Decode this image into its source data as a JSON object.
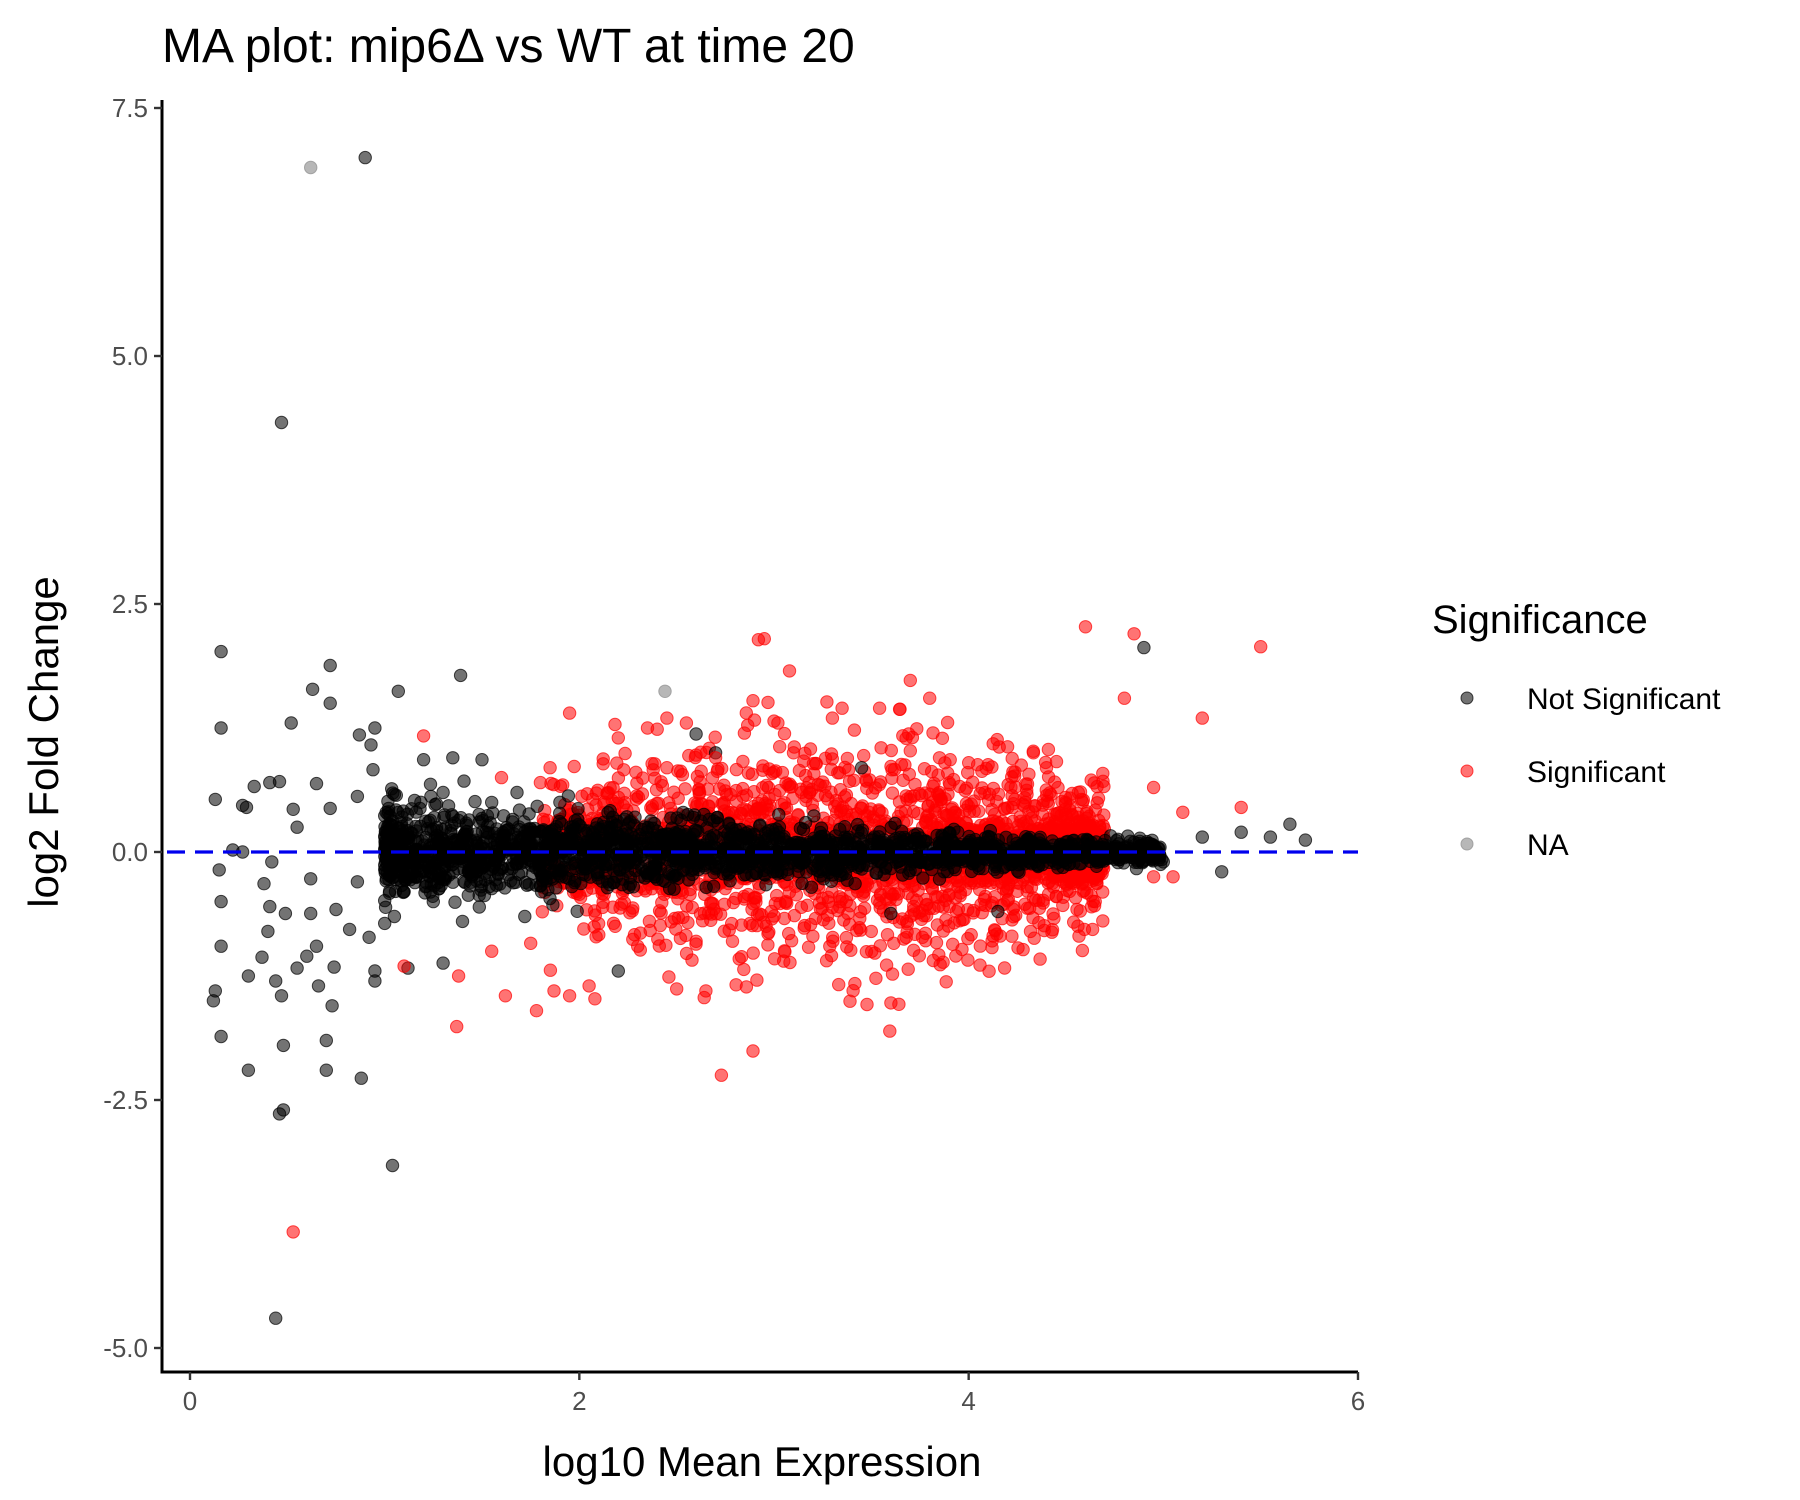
{
  "chart_data": {
    "type": "scatter",
    "title": "MA plot: mip6Δ vs WT at time 20",
    "xlabel": "log10 Mean Expression",
    "ylabel": "log2 Fold Change",
    "xlim": [
      -0.15,
      6.0
    ],
    "ylim": [
      -5.2,
      7.5
    ],
    "xticks": [
      0,
      2,
      4,
      6
    ],
    "yticks": [
      -5.0,
      -2.5,
      0.0,
      2.5,
      5.0,
      7.5
    ],
    "xtick_labels": [
      "0",
      "2",
      "4",
      "6"
    ],
    "ytick_labels": [
      "-5.0",
      "-2.5",
      "0.0",
      "2.5",
      "5.0",
      "7.5"
    ],
    "reference_line": {
      "y": 0,
      "style": "dashed",
      "color": "#0000ee"
    },
    "grid": false,
    "legend": {
      "title": "Significance",
      "position": "right",
      "entries": [
        "Not Significant",
        "Significant",
        "NA"
      ]
    },
    "series": [
      {
        "name": "Not Significant",
        "color": "#000000",
        "opacity": 0.55,
        "points": [
          [
            0.9,
            7.0
          ],
          [
            0.47,
            4.33
          ],
          [
            0.16,
            2.02
          ],
          [
            0.72,
            1.88
          ],
          [
            1.39,
            1.78
          ],
          [
            0.63,
            1.64
          ],
          [
            1.07,
            1.62
          ],
          [
            0.72,
            1.5
          ],
          [
            0.16,
            1.25
          ],
          [
            0.52,
            1.3
          ],
          [
            0.87,
            1.18
          ],
          [
            0.95,
            1.25
          ],
          [
            0.93,
            1.08
          ],
          [
            4.9,
            2.06
          ],
          [
            2.6,
            1.19
          ],
          [
            1.35,
            0.95
          ],
          [
            1.2,
            0.93
          ],
          [
            0.94,
            0.83
          ],
          [
            1.5,
            0.93
          ],
          [
            0.13,
            0.53
          ],
          [
            0.33,
            0.66
          ],
          [
            0.41,
            0.7
          ],
          [
            0.46,
            0.71
          ],
          [
            0.65,
            0.69
          ],
          [
            0.86,
            0.56
          ],
          [
            1.05,
            0.58
          ],
          [
            0.29,
            0.45
          ],
          [
            0.53,
            0.43
          ],
          [
            0.72,
            0.44
          ],
          [
            0.55,
            0.25
          ],
          [
            0.22,
            0.02
          ],
          [
            0.27,
            0.0
          ],
          [
            0.15,
            -0.18
          ],
          [
            0.42,
            -0.1
          ],
          [
            0.38,
            -0.32
          ],
          [
            0.16,
            -0.5
          ],
          [
            0.62,
            -0.27
          ],
          [
            0.86,
            -0.3
          ],
          [
            0.41,
            -0.55
          ],
          [
            0.49,
            -0.62
          ],
          [
            0.62,
            -0.62
          ],
          [
            0.75,
            -0.58
          ],
          [
            0.16,
            -0.95
          ],
          [
            0.4,
            -0.8
          ],
          [
            0.65,
            -0.95
          ],
          [
            0.82,
            -0.78
          ],
          [
            0.92,
            -0.86
          ],
          [
            1.0,
            -0.72
          ],
          [
            1.05,
            -0.65
          ],
          [
            0.3,
            -1.25
          ],
          [
            0.37,
            -1.06
          ],
          [
            0.44,
            -1.3
          ],
          [
            0.55,
            -1.17
          ],
          [
            0.6,
            -1.05
          ],
          [
            0.74,
            -1.16
          ],
          [
            0.95,
            -1.2
          ],
          [
            0.13,
            -1.4
          ],
          [
            0.12,
            -1.5
          ],
          [
            0.47,
            -1.45
          ],
          [
            0.66,
            -1.35
          ],
          [
            0.73,
            -1.55
          ],
          [
            0.95,
            -1.3
          ],
          [
            1.12,
            -1.17
          ],
          [
            1.3,
            -1.12
          ],
          [
            0.16,
            -1.86
          ],
          [
            0.48,
            -1.95
          ],
          [
            0.7,
            -1.9
          ],
          [
            0.3,
            -2.2
          ],
          [
            0.7,
            -2.2
          ],
          [
            0.88,
            -2.28
          ],
          [
            0.48,
            -2.6
          ],
          [
            0.46,
            -2.64
          ],
          [
            1.04,
            -3.16
          ],
          [
            0.44,
            -4.7
          ],
          [
            5.4,
            0.2
          ],
          [
            5.55,
            0.15
          ],
          [
            5.65,
            0.28
          ],
          [
            5.73,
            0.12
          ],
          [
            5.3,
            -0.2
          ],
          [
            5.0,
            -0.1
          ],
          [
            5.2,
            0.15
          ],
          [
            4.95,
            -0.05
          ],
          [
            4.85,
            0.1
          ],
          [
            4.75,
            0.05
          ],
          [
            4.6,
            -0.05
          ],
          [
            4.5,
            0.1
          ],
          [
            4.4,
            0.02
          ],
          [
            4.3,
            0.08
          ],
          [
            4.15,
            -0.6
          ],
          [
            3.6,
            -0.62
          ],
          [
            3.45,
            0.85
          ],
          [
            2.7,
            1.0
          ],
          [
            2.2,
            -1.2
          ],
          [
            1.72,
            -0.65
          ],
          [
            1.68,
            0.6
          ],
          [
            1.55,
            0.5
          ],
          [
            1.3,
            0.6
          ],
          [
            1.4,
            -0.7
          ],
          [
            1.25,
            -0.5
          ],
          [
            1.1,
            -0.4
          ],
          [
            0.27,
            0.47
          ]
        ]
      },
      {
        "name": "Significant",
        "color": "#ff0000",
        "opacity": 0.55,
        "points": [
          [
            2.92,
            2.14
          ],
          [
            2.95,
            2.15
          ],
          [
            4.6,
            2.27
          ],
          [
            4.85,
            2.2
          ],
          [
            5.5,
            2.07
          ],
          [
            3.7,
            1.73
          ],
          [
            3.8,
            1.55
          ],
          [
            4.8,
            1.55
          ],
          [
            5.2,
            1.35
          ],
          [
            1.95,
            1.4
          ],
          [
            1.2,
            1.17
          ],
          [
            2.45,
            1.35
          ],
          [
            2.55,
            1.3
          ],
          [
            2.9,
            1.33
          ],
          [
            3.0,
            1.32
          ],
          [
            3.02,
            1.3
          ],
          [
            3.35,
            1.45
          ],
          [
            3.3,
            1.35
          ],
          [
            2.35,
            1.25
          ],
          [
            2.2,
            1.15
          ],
          [
            4.2,
            1.06
          ],
          [
            4.1,
            0.88
          ],
          [
            4.4,
            0.85
          ],
          [
            5.4,
            0.45
          ],
          [
            5.1,
            0.4
          ],
          [
            4.95,
            0.65
          ],
          [
            0.53,
            -3.83
          ],
          [
            2.73,
            -2.25
          ],
          [
            1.37,
            -1.76
          ],
          [
            1.62,
            -1.45
          ],
          [
            1.78,
            -1.6
          ],
          [
            1.87,
            -1.4
          ],
          [
            1.95,
            -1.45
          ],
          [
            2.05,
            -1.35
          ],
          [
            2.08,
            -1.48
          ],
          [
            2.5,
            -1.38
          ],
          [
            2.65,
            -1.4
          ],
          [
            3.05,
            -1.1
          ],
          [
            1.1,
            -1.15
          ],
          [
            1.38,
            -1.25
          ],
          [
            1.55,
            -1.0
          ],
          [
            1.75,
            -0.92
          ],
          [
            2.3,
            -0.95
          ],
          [
            2.6,
            -0.9
          ],
          [
            3.2,
            -0.85
          ],
          [
            3.5,
            -0.8
          ],
          [
            4.65,
            -0.5
          ],
          [
            4.95,
            -0.25
          ],
          [
            5.05,
            -0.25
          ],
          [
            3.9,
            -0.55
          ],
          [
            4.3,
            -0.35
          ],
          [
            4.45,
            -0.45
          ],
          [
            1.6,
            0.75
          ],
          [
            1.85,
            0.85
          ],
          [
            1.8,
            0.7
          ],
          [
            3.7,
            1.02
          ],
          [
            3.55,
            1.05
          ],
          [
            3.1,
            1.0
          ],
          [
            3.85,
            0.95
          ],
          [
            4.0,
            0.9
          ],
          [
            2.45,
            0.85
          ],
          [
            2.7,
            0.95
          ]
        ]
      },
      {
        "name": "NA",
        "color": "#999999",
        "opacity": 0.7,
        "points": [
          [
            0.62,
            6.9
          ],
          [
            2.44,
            1.62
          ]
        ]
      }
    ],
    "dense_band": {
      "description": "dense cloud of points around log2FC = 0",
      "not_significant": {
        "x_range": [
          1.0,
          5.0
        ],
        "y_center": 0.0,
        "y_spread": 0.3,
        "count": 2200
      },
      "significant": {
        "x_range": [
          1.8,
          4.7
        ],
        "y_center": 0.0,
        "y_spread": 0.55,
        "count": 1900
      }
    }
  }
}
